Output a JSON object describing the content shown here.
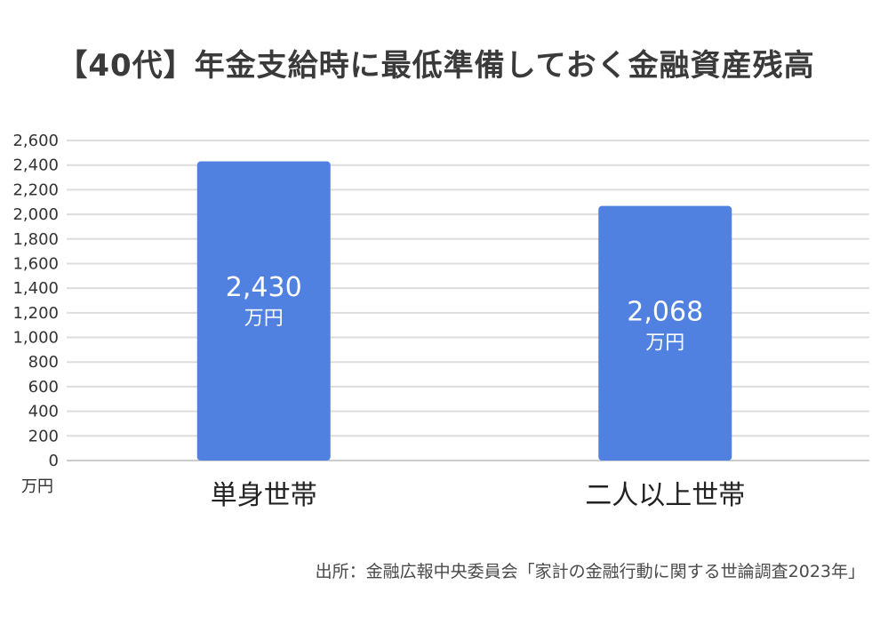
{
  "chart_data": {
    "type": "bar",
    "title": "【40代】年金支給時に最低準備しておく金融資産残高",
    "categories": [
      "単身世帯",
      "二人以上世帯"
    ],
    "values": [
      2430,
      2068
    ],
    "value_labels": [
      "2,430",
      "2,068"
    ],
    "value_unit": "万円",
    "ylabel": "万円",
    "ylim": [
      0,
      2600
    ],
    "yticks": [
      0,
      200,
      400,
      600,
      800,
      1000,
      1200,
      1400,
      1600,
      1800,
      2000,
      2200,
      2400,
      2600
    ],
    "ytick_labels": [
      "0",
      "200",
      "400",
      "600",
      "800",
      "1,000",
      "1,200",
      "1,400",
      "1,600",
      "1,800",
      "2,000",
      "2,200",
      "2,400",
      "2,600"
    ],
    "grid": true,
    "bar_color": "#5080e0",
    "grid_color": "#dddddd"
  },
  "source": "出所：金融広報中央委員会「家計の金融行動に関する世論調査2023年」"
}
